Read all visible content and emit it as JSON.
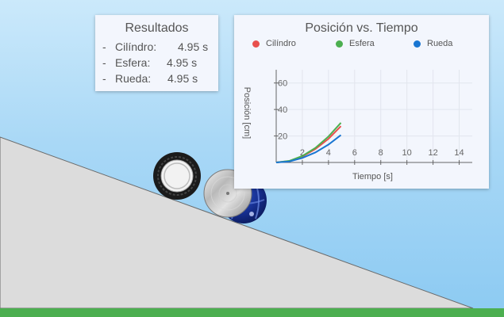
{
  "results": {
    "title": "Resultados",
    "rows": [
      {
        "dash": "-",
        "name": "Cilíndro:",
        "value": "4.95 s"
      },
      {
        "dash": "-",
        "name": "Esfera:",
        "value": "4.95 s"
      },
      {
        "dash": "-",
        "name": "Rueda:",
        "value": "4.95 s"
      }
    ]
  },
  "chart": {
    "title": "Posición vs. Tiempo",
    "legend": [
      {
        "label": "Cilíndro",
        "color": "#e8504d"
      },
      {
        "label": "Esfera",
        "color": "#4caf50"
      },
      {
        "label": "Rueda",
        "color": "#1976d2"
      }
    ]
  },
  "chart_data": {
    "type": "line",
    "title": "Posición vs. Tiempo",
    "xlabel": "Tiempo [s]",
    "ylabel": "Posición [cm]",
    "xlim": [
      0,
      15
    ],
    "ylim": [
      0,
      70
    ],
    "x_ticks": [
      2,
      4,
      6,
      8,
      10,
      12,
      14
    ],
    "y_ticks": [
      20,
      40,
      60
    ],
    "grid": true,
    "legend_position": "top",
    "series": [
      {
        "name": "Cilíndro",
        "color": "#e8504d",
        "x": [
          0,
          1,
          2,
          3,
          4,
          4.95
        ],
        "y": [
          0,
          1.1,
          4.5,
          10.1,
          17.9,
          27.4
        ]
      },
      {
        "name": "Esfera",
        "color": "#4caf50",
        "x": [
          0,
          1,
          2,
          3,
          4,
          4.95
        ],
        "y": [
          0,
          1.2,
          4.9,
          11.0,
          19.6,
          30.0
        ]
      },
      {
        "name": "Rueda",
        "color": "#1976d2",
        "x": [
          0,
          1,
          2,
          3,
          4,
          4.95
        ],
        "y": [
          0,
          0.8,
          3.4,
          7.6,
          13.5,
          20.7
        ]
      }
    ]
  },
  "scene": {
    "ramp_color": "#dcdcdc",
    "ground_color": "#4caf50",
    "objects": [
      "tire-icon",
      "disc-cylinder-icon",
      "sphere-icon"
    ]
  }
}
